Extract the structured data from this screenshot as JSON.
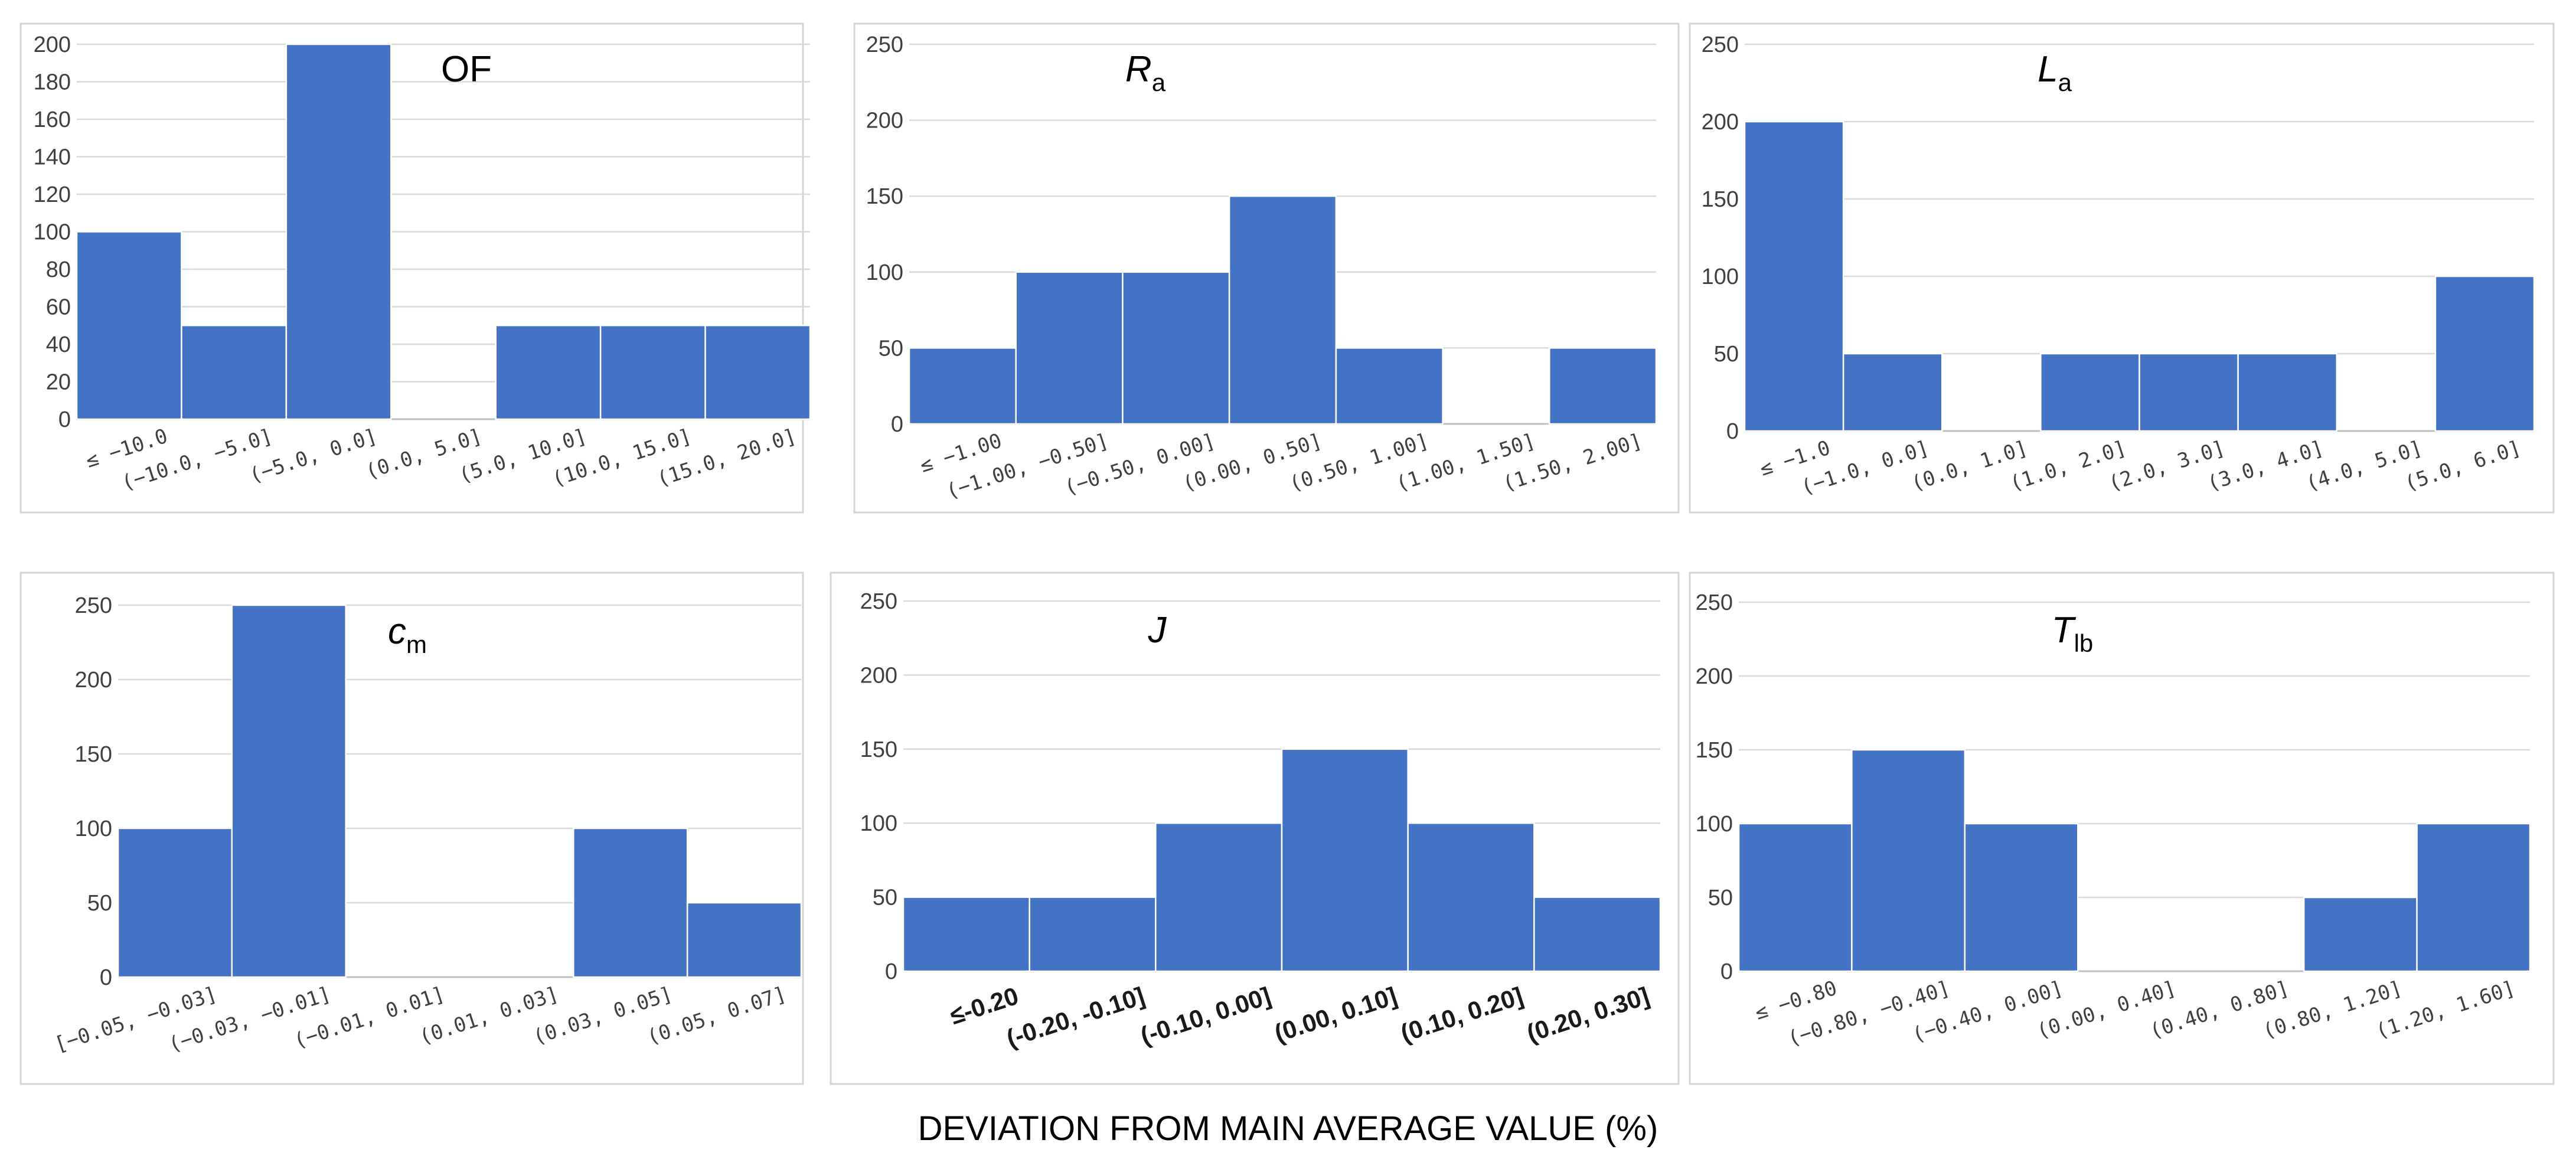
{
  "figure": {
    "xlabel": "DEVIATION FROM MAIN AVERAGE VALUE (%)"
  },
  "chart_data": [
    {
      "type": "bar",
      "title": "OF",
      "title_main": "OF",
      "title_sub": "",
      "title_italic": false,
      "categories": [
        "≤ −10.0",
        "(−10.0, −5.0]",
        "(−5.0, 0.0]",
        "(0.0, 5.0]",
        "(5.0, 10.0]",
        "(10.0, 15.0]",
        "(15.0, 20.0]"
      ],
      "values": [
        100,
        50,
        200,
        0,
        50,
        50,
        50
      ],
      "yticks": [
        0,
        20,
        40,
        60,
        80,
        100,
        120,
        140,
        160,
        180,
        200
      ],
      "ylim": [
        0,
        200
      ],
      "xlabel": "DEVIATION FROM MAIN AVERAGE VALUE (%)",
      "ylabel": "",
      "grid": true,
      "tick_style": "rotated"
    },
    {
      "type": "bar",
      "title": "Ra",
      "title_main": "R",
      "title_sub": "a",
      "title_italic": true,
      "categories": [
        "≤ −1.00",
        "(−1.00, −0.50]",
        "(−0.50, 0.00]",
        "(0.00, 0.50]",
        "(0.50, 1.00]",
        "(1.00, 1.50]",
        "(1.50, 2.00]"
      ],
      "values": [
        50,
        100,
        100,
        150,
        50,
        0,
        50
      ],
      "yticks": [
        0,
        50,
        100,
        150,
        200,
        250
      ],
      "ylim": [
        0,
        250
      ],
      "xlabel": "DEVIATION FROM MAIN AVERAGE VALUE (%)",
      "ylabel": "",
      "grid": true,
      "tick_style": "rotated"
    },
    {
      "type": "bar",
      "title": "La",
      "title_main": "L",
      "title_sub": "a",
      "title_italic": true,
      "categories": [
        "≤ −1.0",
        "(−1.0, 0.0]",
        "(0.0, 1.0]",
        "(1.0, 2.0]",
        "(2.0, 3.0]",
        "(3.0, 4.0]",
        "(4.0, 5.0]",
        "(5.0, 6.0]"
      ],
      "values": [
        200,
        50,
        0,
        50,
        50,
        50,
        0,
        100
      ],
      "yticks": [
        0,
        50,
        100,
        150,
        200,
        250
      ],
      "ylim": [
        0,
        250
      ],
      "xlabel": "DEVIATION FROM MAIN AVERAGE VALUE (%)",
      "ylabel": "",
      "grid": true,
      "tick_style": "rotated"
    },
    {
      "type": "bar",
      "title": "cm",
      "title_main": "c",
      "title_sub": "m",
      "title_italic": true,
      "categories": [
        "[−0.05, −0.03]",
        "(−0.03, −0.01]",
        "(−0.01, 0.01]",
        "(0.01, 0.03]",
        "(0.03, 0.05]",
        "(0.05, 0.07]"
      ],
      "values": [
        100,
        250,
        0,
        0,
        100,
        50
      ],
      "yticks": [
        0,
        50,
        100,
        150,
        200,
        250
      ],
      "ylim": [
        0,
        250
      ],
      "xlabel": "DEVIATION FROM MAIN AVERAGE VALUE (%)",
      "ylabel": "",
      "grid": true,
      "tick_style": "rotated"
    },
    {
      "type": "bar",
      "title": "J",
      "title_main": "J",
      "title_sub": "",
      "title_italic": true,
      "categories": [
        "≤-0.20",
        "(-0.20, -0.10]",
        "(-0.10, 0.00]",
        "(0.00, 0.10]",
        "(0.10, 0.20]",
        "(0.20, 0.30]"
      ],
      "values": [
        50,
        50,
        100,
        150,
        100,
        50
      ],
      "yticks": [
        0,
        50,
        100,
        150,
        200,
        250
      ],
      "ylim": [
        0,
        250
      ],
      "xlabel": "DEVIATION FROM MAIN AVERAGE VALUE (%)",
      "ylabel": "",
      "grid": true,
      "tick_style": "bold"
    },
    {
      "type": "bar",
      "title": "Tlb",
      "title_main": "T",
      "title_sub": "lb",
      "title_italic": true,
      "categories": [
        "≤ −0.80",
        "(−0.80, −0.40]",
        "(−0.40, 0.00]",
        "(0.00, 0.40]",
        "(0.40, 0.80]",
        "(0.80, 1.20]",
        "(1.20, 1.60]"
      ],
      "values": [
        100,
        150,
        100,
        0,
        0,
        50,
        100
      ],
      "yticks": [
        0,
        50,
        100,
        150,
        200,
        250
      ],
      "ylim": [
        0,
        250
      ],
      "xlabel": "DEVIATION FROM MAIN AVERAGE VALUE (%)",
      "ylabel": "",
      "grid": true,
      "tick_style": "rotated"
    }
  ]
}
